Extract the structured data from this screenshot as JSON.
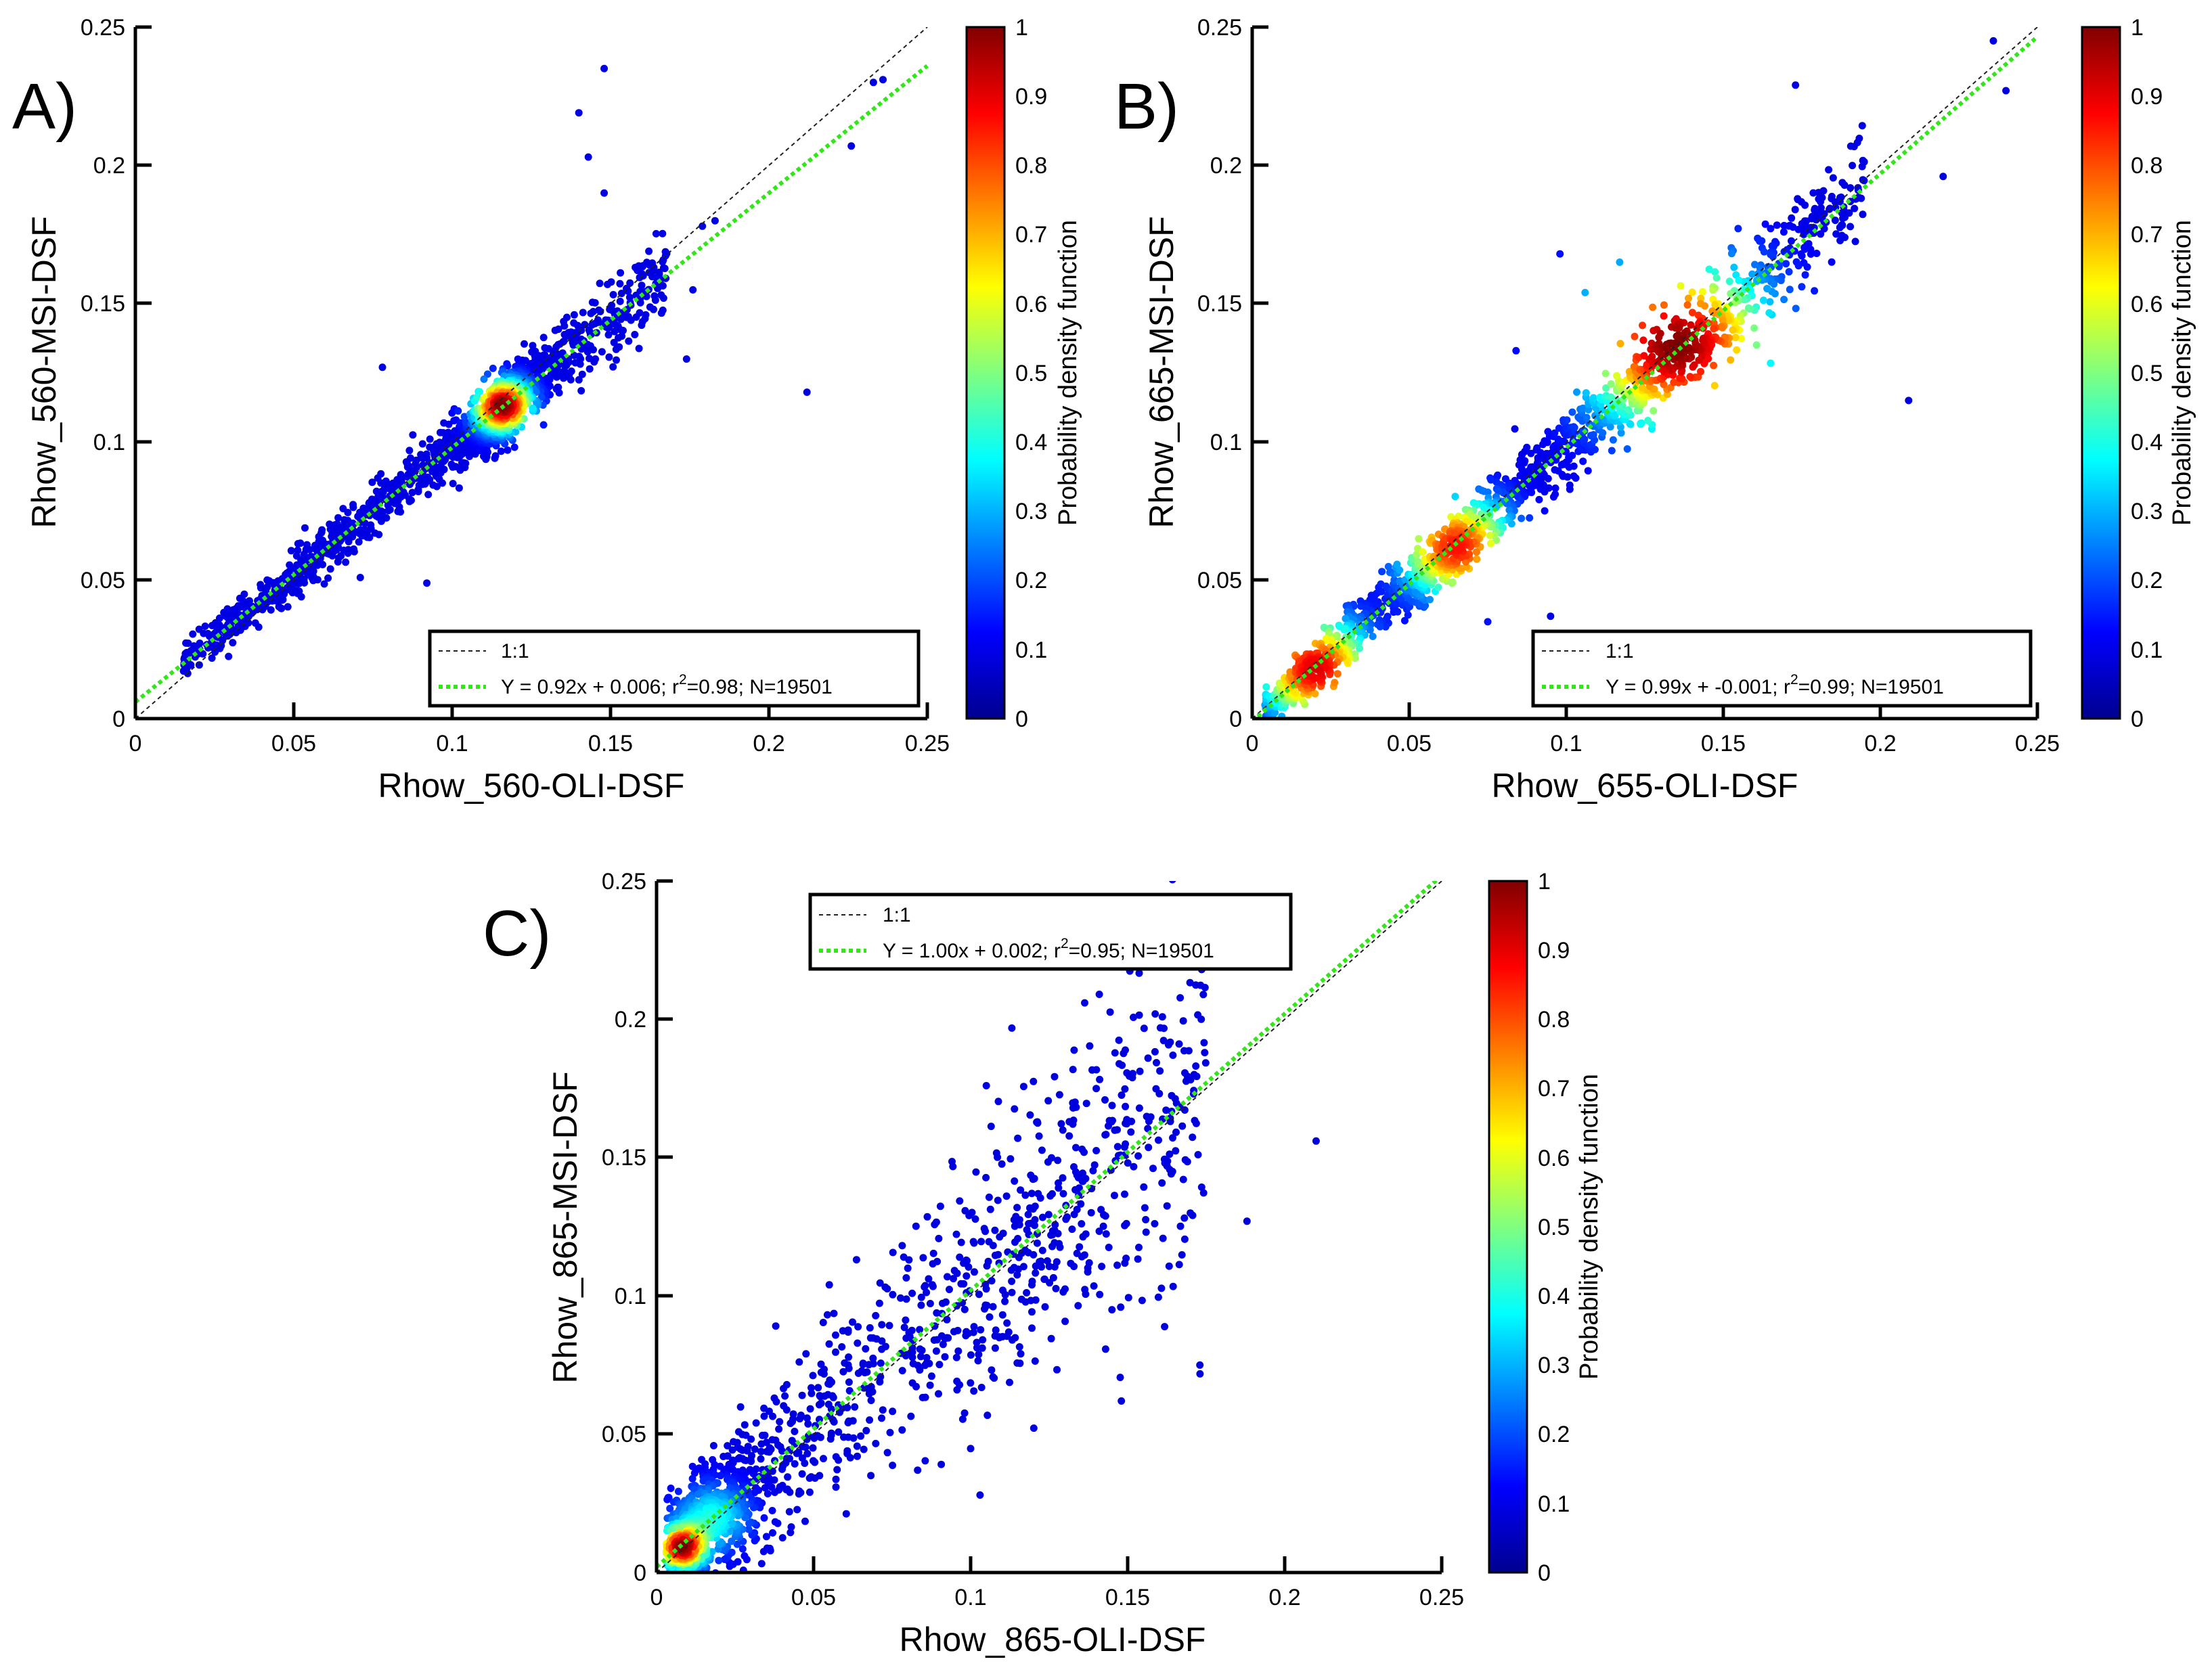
{
  "colorbar": {
    "label": "Probability density function",
    "ticks": [
      "0",
      "0.1",
      "0.2",
      "0.3",
      "0.4",
      "0.5",
      "0.6",
      "0.7",
      "0.8",
      "0.9",
      "1"
    ],
    "range": [
      0,
      1
    ],
    "colormap": "jet"
  },
  "colors": {
    "identity_line": "#222222",
    "fit_line": "#33e61a",
    "axis": "#000000"
  },
  "chart_data": [
    {
      "id": "A",
      "type": "scatter",
      "panel_label": "A)",
      "xlabel": "Rhow_560-OLI-DSF",
      "ylabel": "Rhow_560-MSI-DSF",
      "xlim": [
        0,
        0.25
      ],
      "ylim": [
        0,
        0.25
      ],
      "x_ticks": [
        "0",
        "0.05",
        "0.1",
        "0.15",
        "0.2",
        "0.25"
      ],
      "y_ticks": [
        "0",
        "0.05",
        "0.1",
        "0.15",
        "0.2",
        "0.25"
      ],
      "fit": {
        "slope": 0.92,
        "intercept": 0.006,
        "r2": 0.98,
        "n": 19501
      },
      "legend": {
        "placement": "bottom-right",
        "identity_label": "1:1",
        "fit_label_pre": "Y = 0.92x + 0.006; r",
        "fit_label_sup": "2",
        "fit_label_post": "=0.98; N=19501"
      },
      "density_peaks": [
        {
          "x": 0.116,
          "y": 0.113,
          "sd": 0.006,
          "w": 1.0
        }
      ],
      "scatter_range": [
        0.015,
        0.168
      ],
      "spread": 0.0045,
      "outliers": [
        [
          0.148,
          0.235
        ],
        [
          0.14,
          0.219
        ],
        [
          0.143,
          0.203
        ],
        [
          0.148,
          0.19
        ],
        [
          0.233,
          0.23
        ],
        [
          0.236,
          0.231
        ],
        [
          0.226,
          0.207
        ],
        [
          0.212,
          0.118
        ],
        [
          0.179,
          0.178
        ],
        [
          0.183,
          0.18
        ],
        [
          0.176,
          0.155
        ],
        [
          0.174,
          0.13
        ],
        [
          0.078,
          0.127
        ],
        [
          0.092,
          0.049
        ],
        [
          0.071,
          0.051
        ]
      ]
    },
    {
      "id": "B",
      "type": "scatter",
      "panel_label": "B)",
      "xlabel": "Rhow_655-OLI-DSF",
      "ylabel": "Rhow_665-MSI-DSF",
      "xlim": [
        0,
        0.25
      ],
      "ylim": [
        0,
        0.25
      ],
      "x_ticks": [
        "0",
        "0.05",
        "0.1",
        "0.15",
        "0.2",
        "0.25"
      ],
      "y_ticks": [
        "0",
        "0.05",
        "0.1",
        "0.15",
        "0.2",
        "0.25"
      ],
      "fit": {
        "slope": 0.99,
        "intercept": -0.001,
        "r2": 0.99,
        "n": 19501
      },
      "legend": {
        "placement": "bottom-right",
        "identity_label": "1:1",
        "fit_label_pre": "Y = 0.99x + -0.001; r",
        "fit_label_sup": "2",
        "fit_label_post": "=0.99; N=19501"
      },
      "density_peaks": [
        {
          "x": 0.135,
          "y": 0.135,
          "sd": 0.02,
          "w": 1.0
        },
        {
          "x": 0.065,
          "y": 0.062,
          "sd": 0.012,
          "w": 0.85
        },
        {
          "x": 0.02,
          "y": 0.018,
          "sd": 0.012,
          "w": 0.9
        }
      ],
      "scatter_range": [
        0.004,
        0.195
      ],
      "spread": 0.006,
      "outliers": [
        [
          0.236,
          0.245
        ],
        [
          0.24,
          0.227
        ],
        [
          0.173,
          0.229
        ],
        [
          0.22,
          0.196
        ],
        [
          0.193,
          0.191
        ],
        [
          0.209,
          0.115
        ],
        [
          0.098,
          0.168
        ],
        [
          0.117,
          0.165
        ],
        [
          0.106,
          0.154
        ],
        [
          0.084,
          0.133
        ],
        [
          0.053,
          0.065
        ],
        [
          0.045,
          0.04
        ],
        [
          0.075,
          0.035
        ],
        [
          0.095,
          0.037
        ]
      ]
    },
    {
      "id": "C",
      "type": "scatter",
      "panel_label": "C)",
      "xlabel": "Rhow_865-OLI-DSF",
      "ylabel": "Rhow_865-MSI-DSF",
      "xlim": [
        0,
        0.25
      ],
      "ylim": [
        0,
        0.25
      ],
      "x_ticks": [
        "0",
        "0.05",
        "0.1",
        "0.15",
        "0.2",
        "0.25"
      ],
      "y_ticks": [
        "0",
        "0.05",
        "0.1",
        "0.15",
        "0.2",
        "0.25"
      ],
      "fit": {
        "slope": 1.0,
        "intercept": 0.002,
        "r2": 0.95,
        "n": 19501
      },
      "legend": {
        "placement": "top-left",
        "identity_label": "1:1",
        "fit_label_pre": "Y = 1.00x + 0.002; r",
        "fit_label_sup": "2",
        "fit_label_post": "=0.95; N=19501"
      },
      "density_peaks": [
        {
          "x": 0.008,
          "y": 0.009,
          "sd": 0.005,
          "w": 1.0
        },
        {
          "x": 0.018,
          "y": 0.02,
          "sd": 0.008,
          "w": 0.35
        }
      ],
      "scatter_range": [
        0.003,
        0.175
      ],
      "spread": 0.012,
      "outliers": [
        [
          0.21,
          0.156
        ],
        [
          0.188,
          0.127
        ],
        [
          0.105,
          0.176
        ],
        [
          0.173,
          0.075
        ],
        [
          0.148,
          0.062
        ],
        [
          0.145,
          0.095
        ],
        [
          0.103,
          0.028
        ],
        [
          0.035,
          0.013
        ],
        [
          0.028,
          0.006
        ],
        [
          0.055,
          0.104
        ],
        [
          0.08,
          0.11
        ]
      ]
    }
  ]
}
